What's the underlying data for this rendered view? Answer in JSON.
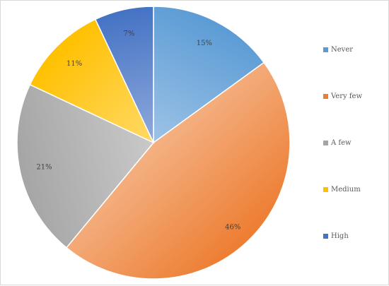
{
  "chart_data": {
    "type": "pie",
    "title": "",
    "slices": [
      {
        "label": "Never",
        "value": 15,
        "display": "15%",
        "color": "#5b9bd5"
      },
      {
        "label": "Very few",
        "value": 46,
        "display": "46%",
        "color": "#ed7d31"
      },
      {
        "label": "A few",
        "value": 21,
        "display": "21%",
        "color": "#a5a5a5"
      },
      {
        "label": "Medium",
        "value": 11,
        "display": "11%",
        "color": "#ffc000"
      },
      {
        "label": "High",
        "value": 7,
        "display": "7%",
        "color": "#4472c4"
      }
    ],
    "start_angle_deg": 0,
    "direction": "clockwise",
    "gradient_fill": true,
    "legend_position": "right"
  }
}
